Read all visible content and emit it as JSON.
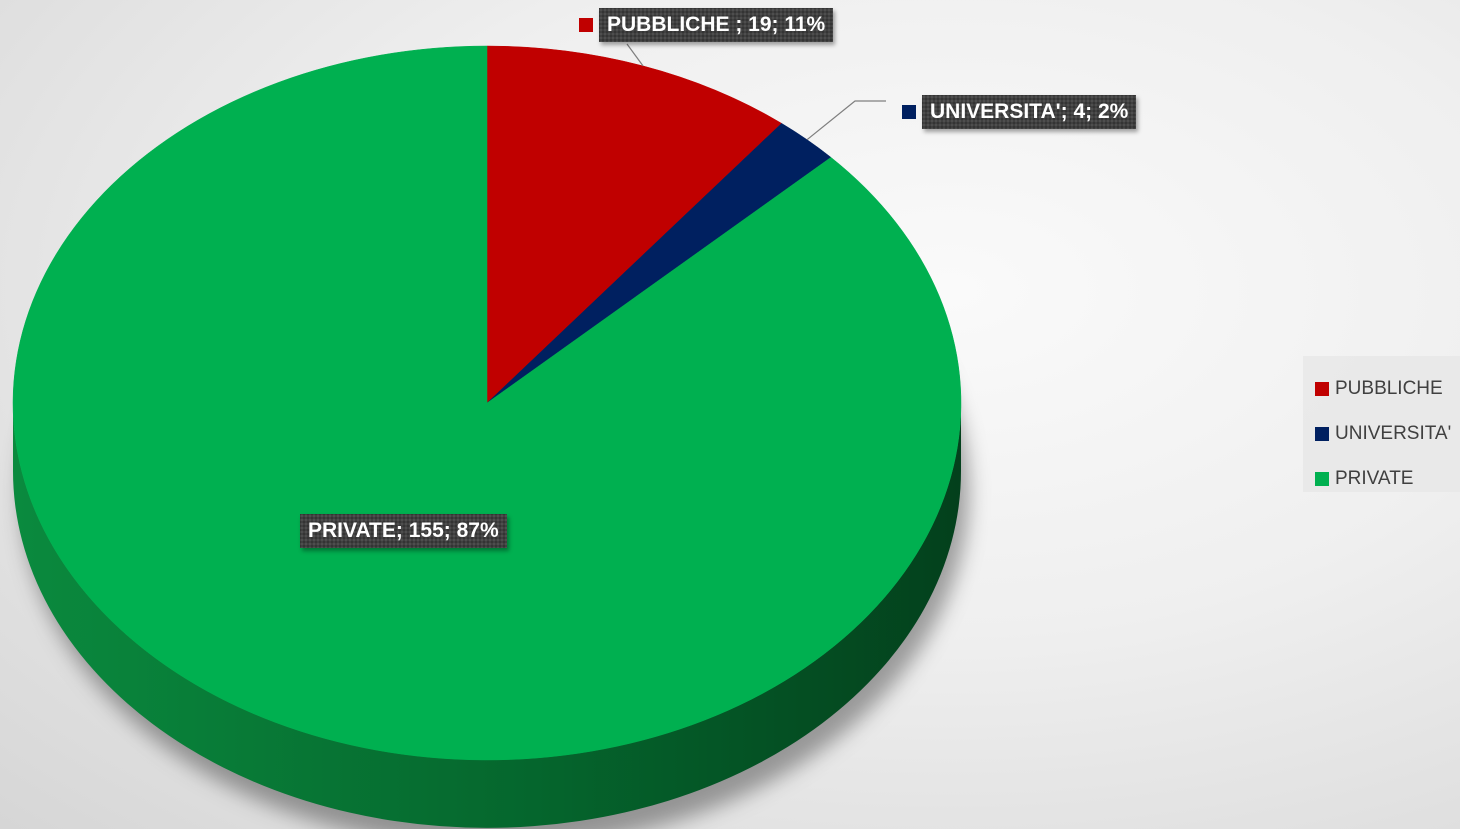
{
  "chart_data": {
    "type": "pie",
    "title": "",
    "three_d": true,
    "legend_position": "right",
    "slices": [
      {
        "label": "PUBBLICHE ",
        "value": 19,
        "percent": 11,
        "color": "#C00000",
        "data_label": "PUBBLICHE ; 19; 11%"
      },
      {
        "label": "UNIVERSITA'",
        "value": 4,
        "percent": 2,
        "color": "#002060",
        "data_label": "UNIVERSITA'; 4; 2%"
      },
      {
        "label": "PRIVATE",
        "value": 155,
        "percent": 87,
        "color": "#00B050",
        "data_label": "PRIVATE; 155; 87%"
      }
    ],
    "legend": [
      "PUBBLICHE",
      "UNIVERSITA'",
      "PRIVATE"
    ]
  }
}
